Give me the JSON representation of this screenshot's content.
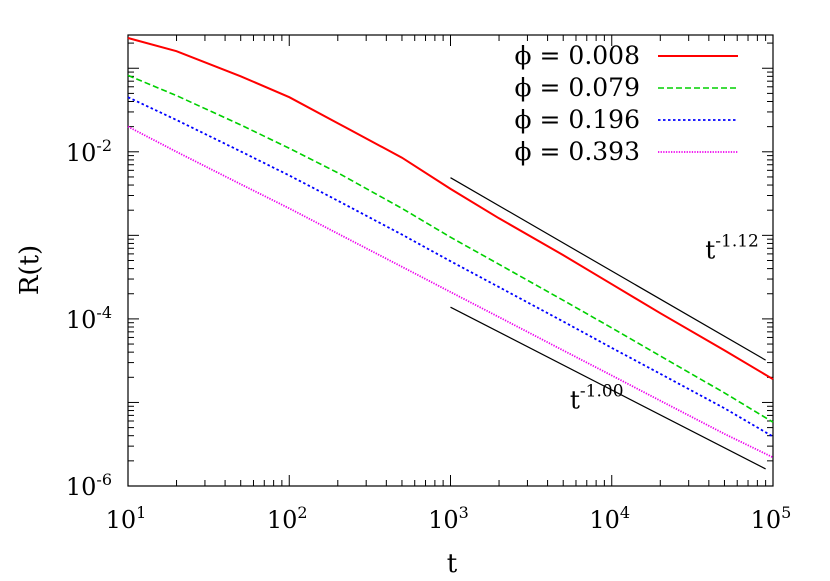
{
  "chart_data": {
    "type": "line",
    "xlabel": "t",
    "ylabel": "R(t)",
    "x_scale": "log",
    "y_scale": "log",
    "xlim": [
      10,
      100000
    ],
    "ylim": [
      1e-06,
      0.25
    ],
    "x_ticks": [
      {
        "value": 10,
        "base": "10",
        "exp": "1"
      },
      {
        "value": 100,
        "base": "10",
        "exp": "2"
      },
      {
        "value": 1000,
        "base": "10",
        "exp": "3"
      },
      {
        "value": 10000,
        "base": "10",
        "exp": "4"
      },
      {
        "value": 100000,
        "base": "10",
        "exp": "5"
      }
    ],
    "y_ticks": [
      {
        "value": 1e-06,
        "base": "10",
        "exp": "-6"
      },
      {
        "value": 0.0001,
        "base": "10",
        "exp": "-4"
      },
      {
        "value": 0.01,
        "base": "10",
        "exp": "-2"
      }
    ],
    "grid": false,
    "legend_position": "top-right",
    "series": [
      {
        "name": "ϕ = 0.008",
        "color": "#ff0000",
        "dash": "solid",
        "points": [
          [
            10,
            0.23
          ],
          [
            20,
            0.16
          ],
          [
            50,
            0.08
          ],
          [
            100,
            0.045
          ],
          [
            200,
            0.022
          ],
          [
            500,
            0.0085
          ],
          [
            1000,
            0.0036
          ],
          [
            2000,
            0.0016
          ],
          [
            5000,
            0.00058
          ],
          [
            10000,
            0.00026
          ],
          [
            20000,
            0.000117
          ],
          [
            50000,
            4.2e-05
          ],
          [
            100000,
            1.9e-05
          ]
        ]
      },
      {
        "name": "ϕ = 0.079",
        "color": "#00d000",
        "dash": "dashed",
        "points": [
          [
            10,
            0.082
          ],
          [
            20,
            0.047
          ],
          [
            50,
            0.021
          ],
          [
            100,
            0.011
          ],
          [
            200,
            0.0056
          ],
          [
            500,
            0.0021
          ],
          [
            1000,
            0.00095
          ],
          [
            2000,
            0.00045
          ],
          [
            5000,
            0.000167
          ],
          [
            10000,
            7.8e-05
          ],
          [
            20000,
            3.6e-05
          ],
          [
            50000,
            1.3e-05
          ],
          [
            100000,
            5.8e-06
          ]
        ]
      },
      {
        "name": "ϕ = 0.196",
        "color": "#0000ff",
        "dash": "dotted",
        "points": [
          [
            10,
            0.045
          ],
          [
            20,
            0.024
          ],
          [
            50,
            0.0101
          ],
          [
            100,
            0.0052
          ],
          [
            200,
            0.0026
          ],
          [
            500,
            0.00102
          ],
          [
            1000,
            0.00049
          ],
          [
            2000,
            0.00024
          ],
          [
            5000,
            9.3e-05
          ],
          [
            10000,
            4.5e-05
          ],
          [
            20000,
            2.2e-05
          ],
          [
            50000,
            8.5e-06
          ],
          [
            100000,
            3.9e-06
          ]
        ]
      },
      {
        "name": "ϕ = 0.393",
        "color": "#ee00ee",
        "dash": "finedotted",
        "points": [
          [
            10,
            0.02
          ],
          [
            20,
            0.01
          ],
          [
            50,
            0.0041
          ],
          [
            100,
            0.0021
          ],
          [
            200,
            0.00105
          ],
          [
            500,
            0.00042
          ],
          [
            1000,
            0.00021
          ],
          [
            2000,
            0.000105
          ],
          [
            5000,
            4.2e-05
          ],
          [
            10000,
            2.1e-05
          ],
          [
            20000,
            1.05e-05
          ],
          [
            50000,
            4.2e-06
          ],
          [
            100000,
            2.2e-06
          ]
        ]
      }
    ],
    "guide_lines": [
      {
        "label_base": "t",
        "label_exp": "-1.12",
        "start": [
          1000,
          0.0049
        ],
        "end": [
          90000,
          3.21e-05
        ],
        "label_at": [
          38000,
          0.00053
        ]
      },
      {
        "label_base": "t",
        "label_exp": "-1.00",
        "start": [
          1000,
          0.000138
        ],
        "end": [
          90000,
          1.6e-06
        ],
        "label_at": [
          5500,
          8.5e-06
        ]
      }
    ]
  }
}
